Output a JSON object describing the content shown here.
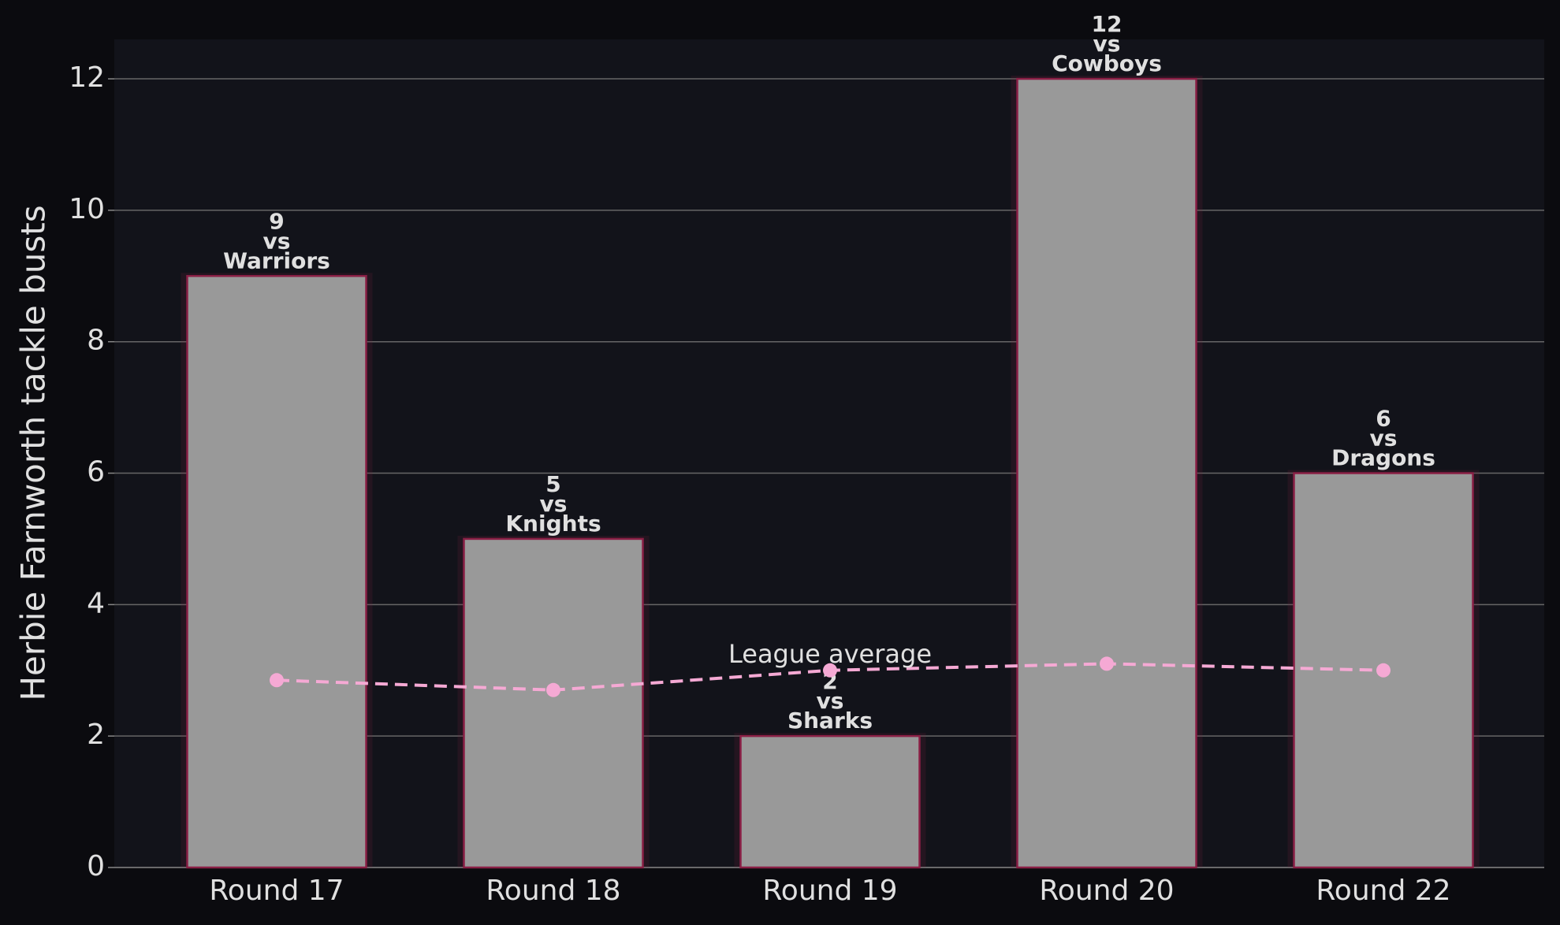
{
  "chart_data": {
    "type": "bar",
    "ylabel": "Herbie Farnworth tackle busts",
    "categories": [
      "Round 17",
      "Round 18",
      "Round 19",
      "Round 20",
      "Round 22"
    ],
    "series": [
      {
        "name": "Herbie Farnworth",
        "type": "bar",
        "color": "#999999",
        "values": [
          9,
          5,
          2,
          12,
          6
        ]
      },
      {
        "name": "League average",
        "type": "line",
        "color": "#f5a9d4",
        "values": [
          2.85,
          2.7,
          3.0,
          3.1,
          3.0
        ]
      }
    ],
    "opponents": [
      "Warriors",
      "Knights",
      "Sharks",
      "Cowboys",
      "Dragons"
    ],
    "connector": "vs",
    "ylim": [
      0,
      12.6
    ],
    "yticks": [
      0,
      2,
      4,
      6,
      8,
      10,
      12
    ],
    "grid": true
  }
}
